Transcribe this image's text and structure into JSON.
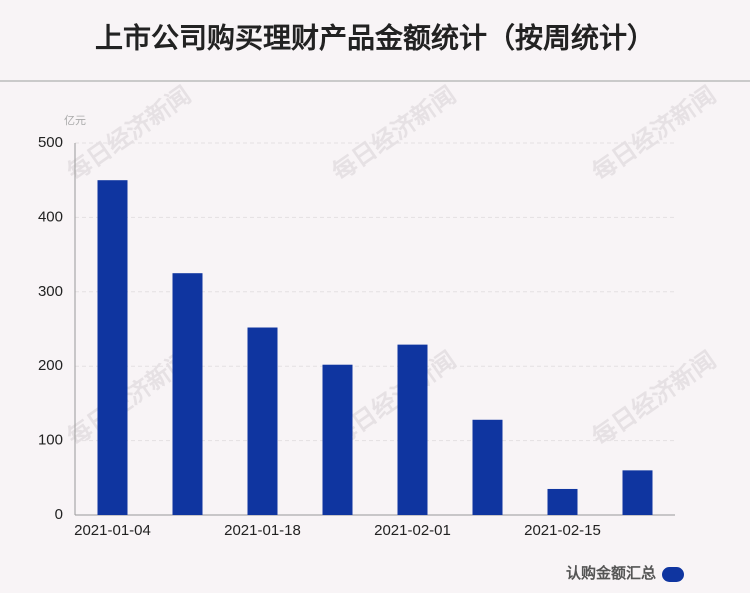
{
  "chart_data": {
    "type": "bar",
    "title": "上市公司购买理财产品金额统计（按周统计）",
    "y_unit": "亿元",
    "watermark": "每日经济新闻",
    "categories": [
      "2021-01-04",
      null,
      "2021-01-18",
      null,
      "2021-02-01",
      null,
      "2021-02-15",
      null
    ],
    "series": [
      {
        "name": "认购金额汇总",
        "color": "#0f35a0",
        "values": [
          450,
          325,
          252,
          202,
          229,
          128,
          35,
          60
        ]
      }
    ],
    "ylim": [
      0,
      500
    ],
    "yticks": [
      0,
      100,
      200,
      300,
      400,
      500
    ],
    "grid": true,
    "legend": "bottom-right"
  }
}
